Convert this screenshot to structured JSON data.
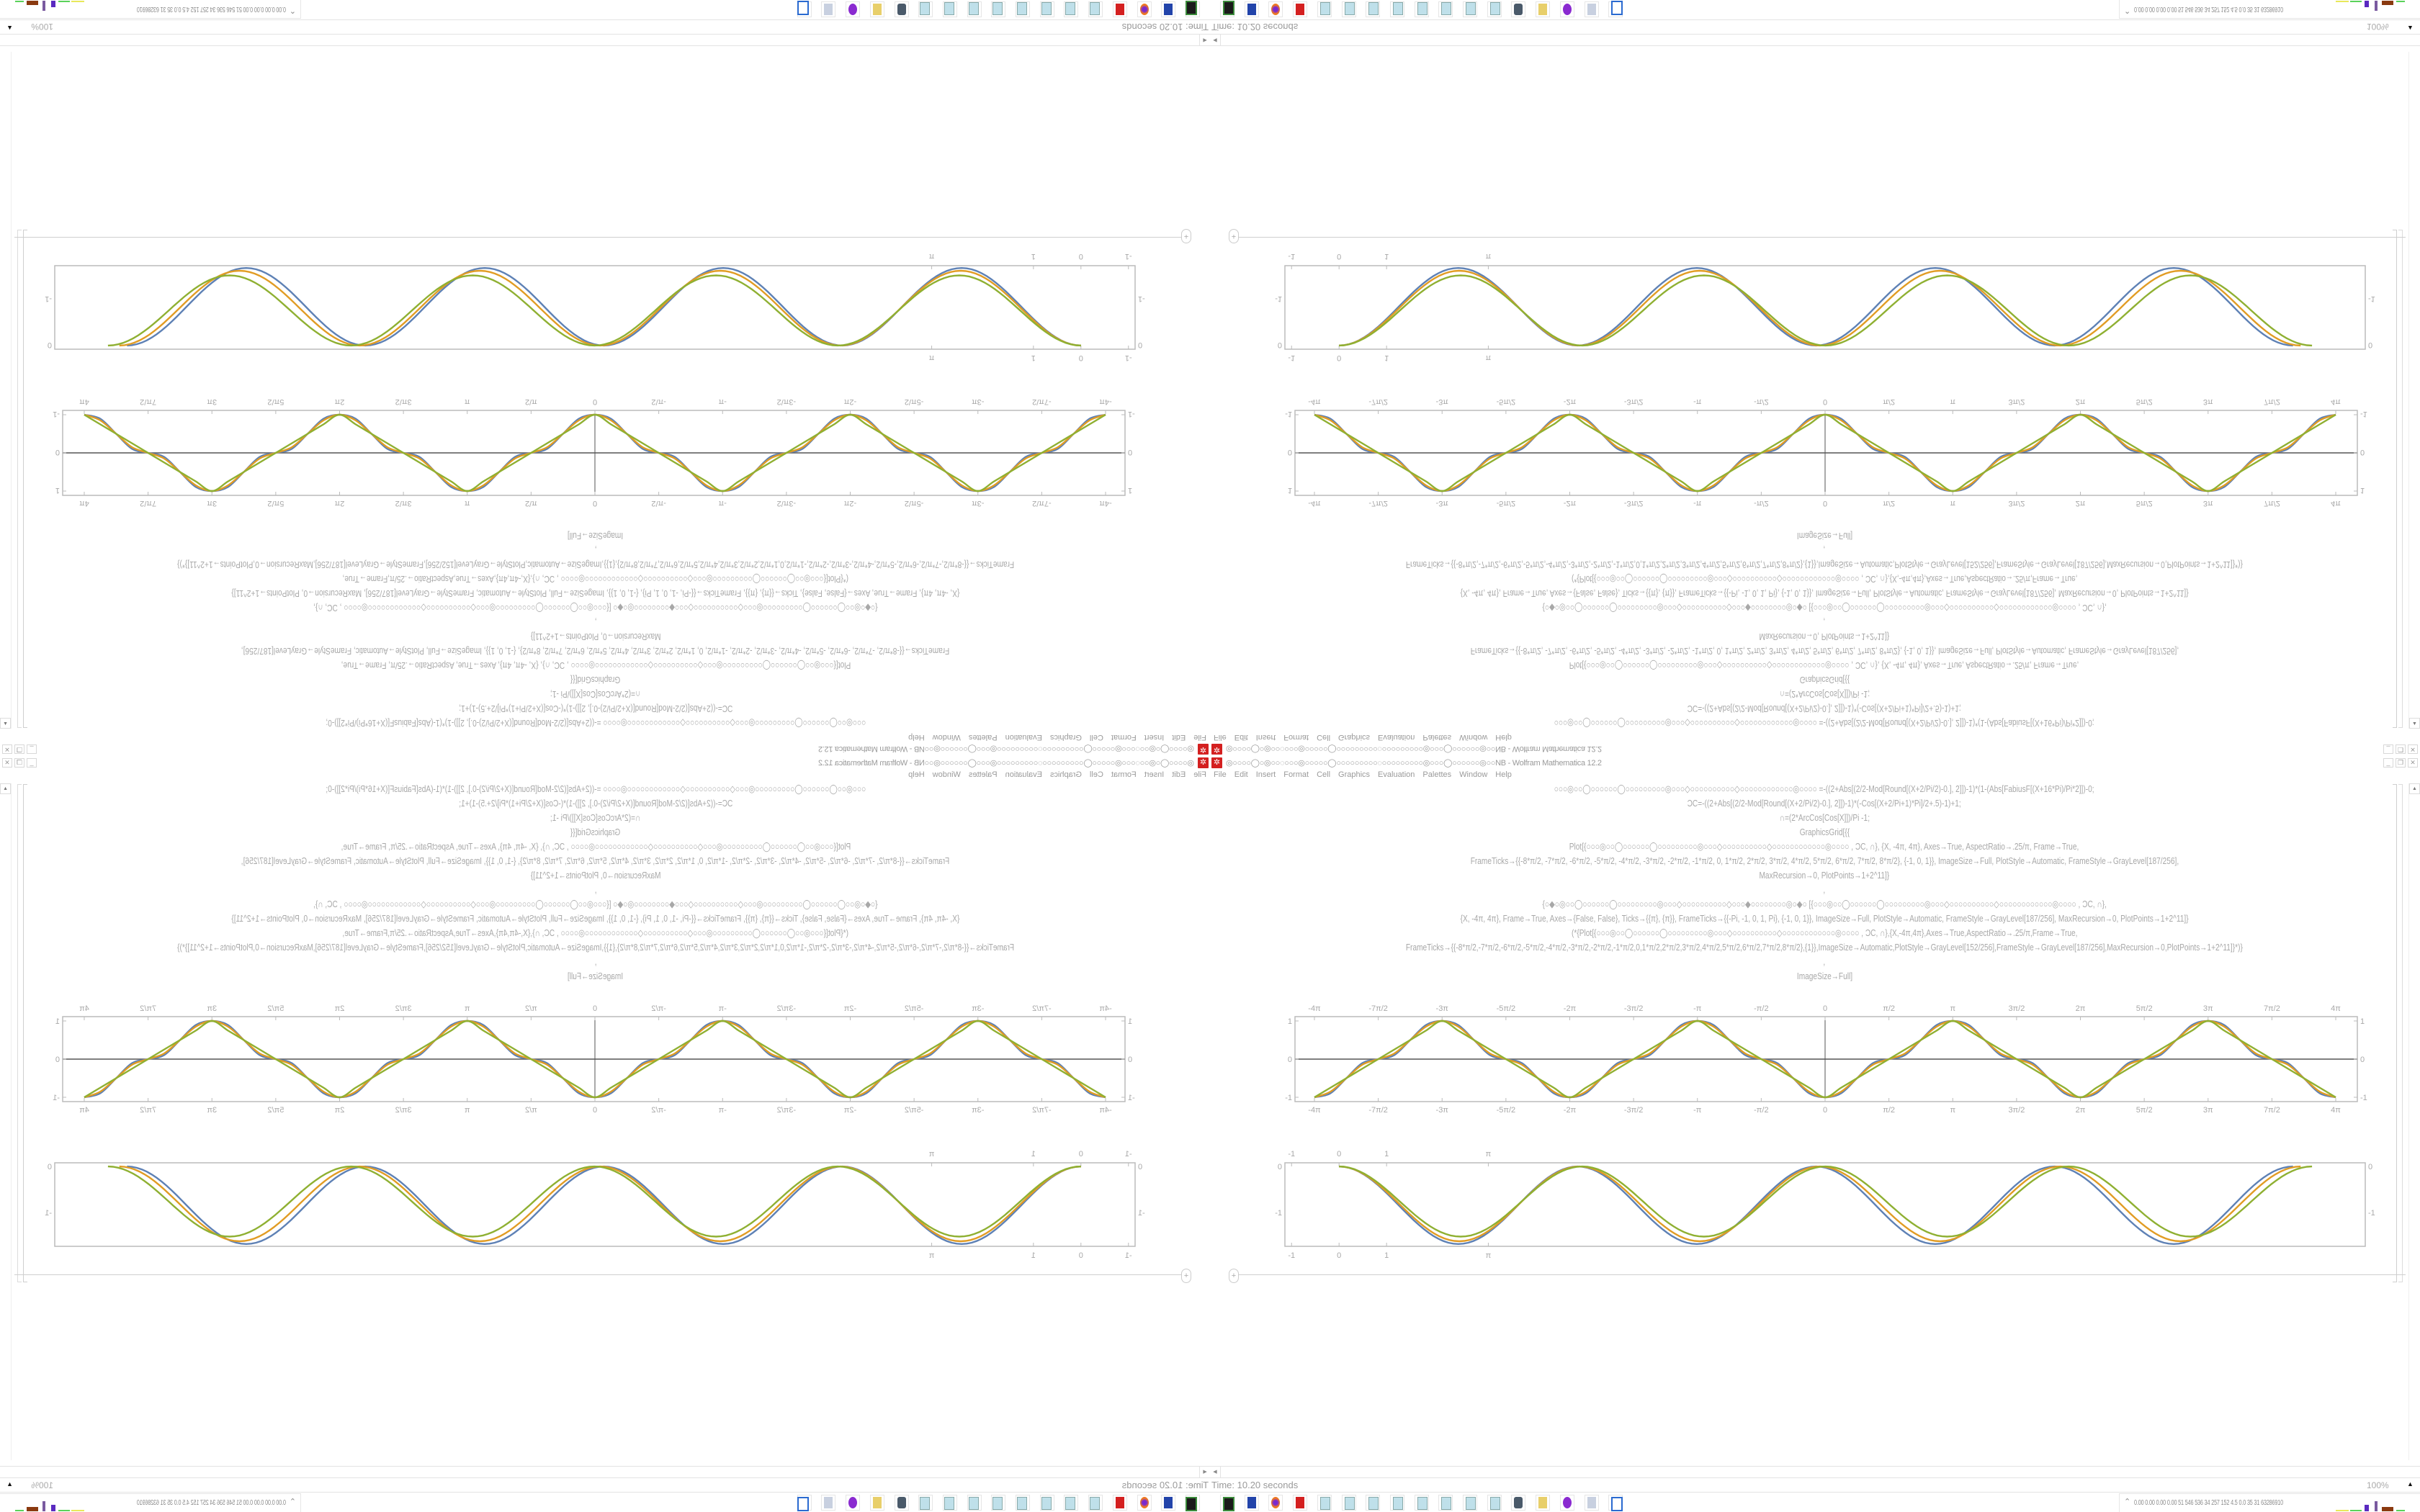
{
  "window": {
    "title": "◎○○○○◯○◎○○◌○○○◎○○○○○◯○○○○○○○○○◌○○○○○○○○○◎○○○◯○○○○○○◎○○NB - Wolfram Mathematica 12.2",
    "app_icon": "mathematica-icon",
    "buttons": {
      "minimize": "_",
      "restore": "❐",
      "close": "✕"
    }
  },
  "menu": [
    "File",
    "Edit",
    "Insert",
    "Format",
    "Cell",
    "Graphics",
    "Evaluation",
    "Palettes",
    "Window",
    "Help"
  ],
  "code_lines": [
    "○○○◎○○◯○○○○○○◯○○○○○○○○○◎○○○◇○○○○○○○○○○◇○○○○○○○○○○○○◎○○○○   =-((2+Abs[(2/2-Mod[Round[(X+2/Pi/2)-0.], 2]])-1)*(1-(Abs[FabiusF[(X+16*Pi)/Pi*2]])-0;",
    "ϽC=-((2+Abs[(2/2-Mod[Round[(X+2/Pi/2)-0.], 2]])-1)*(-Cos[(X+2/Pi+1)*Pi]/2+.5)-1)+1;",
    "∩=(2*ArcCos[Cos[X]])/Pi -1;",
    "GraphicsGrid[{{",
    "Plot[{○○○◎○○◯○○○○○○◯○○○○○○○○○◎○○○◇○○○○○○○○○○◇○○○○○○○○○○○○◎○○○○ , ϽC, ∩}, {X, -4π, 4π}, Axes→True, AspectRatio→.25/π, Frame→True,",
    "FrameTicks→{{-8*π/2, -7*π/2, -6*π/2, -5*π/2, -4*π/2, -3*π/2, -2*π/2, -1*π/2, 0, 1*π/2, 2*π/2, 3*π/2, 4*π/2, 5*π/2, 6*π/2, 7*π/2, 8*π/2}, {-1, 0, 1}}, ImageSize→Full, PlotStyle→Automatic, FrameStyle→GrayLevel[187/256],",
    "MaxRecursion→0, PlotPoints→1+2^11]}",
    ",",
    "{○◆○◎○○◯○○○○○○◯○○○○○○○○○◎○○○◇○○○○○○○○○○◇○○○◆○○○○○○○○◎○◆○ [{○○○◎○○◯○○○○○○◯○○○○○○○○○◎○○○◇○○○○○○○○○○◇○○○○○○○○○○○○◎○○○○ , ϽC, ∩},",
    "{X, -4π, 4π}, Frame→True, Axes→{False, False}, Ticks→{{π}, {π}}, FrameTicks→{{-Pi, -1, 0, 1, Pi}, {-1, 0, 1}}, ImageSize→Full, PlotStyle→Automatic, FrameStyle→GrayLevel[187/256], MaxRecursion→0, PlotPoints→1+2^11]}",
    "(*{Plot[{○○○◎○○◯○○○○○○◯○○○○○○○○○◎○○○◇○○○○○○○○○○◇○○○○○○○○○○○○◎○○○○ , ϽC, ∩},{X,-4π,4π},Axes→True,AspectRatio→.25/π,Frame→True,",
    "FrameTicks→{{-8*π/2,-7*π/2,-6*π/2,-5*π/2,-4*π/2,-3*π/2,-2*π/2,-1*π/2,0,1*π/2,2*π/2,3*π/2,4*π/2,5*π/2,6*π/2,7*π/2,8*π/2},{1}},ImageSize→Automatic,PlotStyle→GrayLevel[152/256],FrameStyle→GrayLevel[187/256],MaxRecursion→0,PlotPoints→1+2^11]}*)}",
    ",",
    "ImageSize→Full]"
  ],
  "add_cell_label": "+",
  "status": {
    "text": "Time: 10.20 seconds",
    "zoom": "100%"
  },
  "taskbar": {
    "icons": [
      "terminal-icon",
      "floppy-64-icon",
      "firefox-icon",
      "mathematica-icon",
      "notepad-icon",
      "notepad-icon",
      "notepad-icon",
      "notepad-icon",
      "notepad-icon",
      "notepad-icon",
      "notepad-icon",
      "notepad-icon",
      "webcam-icon",
      "folder-icon",
      "ghost-app-icon",
      "scroll-document-icon",
      "window-icon"
    ]
  },
  "tray": {
    "chevron": "⌃",
    "stats": "0.00 0.00 0.00 0.00   51   546  536   34   257  152   4.5   0.0   35    31  63286910"
  },
  "colors": {
    "series1": "#5E81B5",
    "series2": "#E19C24",
    "series3": "#8FB032",
    "frame": "#BBBBBB",
    "axis": "#555555"
  },
  "chart_data": [
    {
      "type": "line",
      "xlim": [
        -12.566,
        12.566
      ],
      "ylim": [
        -1,
        1
      ],
      "x_ticks_pi": [
        -4,
        -3.5,
        -3,
        -2.5,
        -2,
        -1.5,
        -1,
        -0.5,
        0,
        0.5,
        1,
        1.5,
        2,
        2.5,
        3,
        3.5,
        4
      ],
      "x_tick_labels": [
        "-4π",
        "-7π/2",
        "-3π",
        "-5π/2",
        "-2π",
        "-3π/2",
        "-π",
        "-π/2",
        "0",
        "π/2",
        "π",
        "3π/2",
        "2π",
        "5π/2",
        "3π",
        "7π/2",
        "4π"
      ],
      "y_ticks": [
        -1,
        0,
        1
      ],
      "y_tick_labels": [
        "-1",
        "0",
        "1"
      ],
      "axes": true,
      "frame": true,
      "x_sample_step_pi": 0.125,
      "series": [
        {
          "color": "#5E81B5",
          "values": [
            -1,
            -0.896,
            -0.5,
            -0.104,
            0,
            0.104,
            0.5,
            0.896,
            1,
            0.896,
            0.5,
            0.104,
            0,
            -0.104,
            -0.5,
            -0.896,
            -1,
            -0.896,
            -0.5,
            -0.104,
            0,
            0.104,
            0.5,
            0.896,
            1,
            0.896,
            0.5,
            0.104,
            0,
            -0.104,
            -0.5,
            -0.896,
            -1,
            -0.896,
            -0.5,
            -0.104,
            0,
            0.104,
            0.5,
            0.896,
            1,
            0.896,
            0.5,
            0.104,
            0,
            -0.104,
            -0.5,
            -0.896,
            -1,
            -0.896,
            -0.5,
            -0.104,
            0,
            0.104,
            0.5,
            0.896,
            1,
            0.896,
            0.5,
            0.104,
            0,
            -0.104,
            -0.5,
            -0.896,
            -1
          ]
        },
        {
          "color": "#E19C24",
          "values": [
            -1,
            -0.854,
            -0.5,
            -0.146,
            0,
            0.146,
            0.5,
            0.854,
            1,
            0.854,
            0.5,
            0.146,
            0,
            -0.146,
            -0.5,
            -0.854,
            -1,
            -0.854,
            -0.5,
            -0.146,
            0,
            0.146,
            0.5,
            0.854,
            1,
            0.854,
            0.5,
            0.146,
            0,
            -0.146,
            -0.5,
            -0.854,
            -1,
            -0.854,
            -0.5,
            -0.146,
            0,
            0.146,
            0.5,
            0.854,
            1,
            0.854,
            0.5,
            0.146,
            0,
            -0.146,
            -0.5,
            -0.854,
            -1,
            -0.854,
            -0.5,
            -0.146,
            0,
            0.146,
            0.5,
            0.854,
            1,
            0.854,
            0.5,
            0.146,
            0,
            -0.146,
            -0.5,
            -0.854,
            -1
          ]
        },
        {
          "color": "#8FB032",
          "values": [
            -1,
            -0.75,
            -0.5,
            -0.25,
            0,
            0.25,
            0.5,
            0.75,
            1,
            0.75,
            0.5,
            0.25,
            0,
            -0.25,
            -0.5,
            -0.75,
            -1,
            -0.75,
            -0.5,
            -0.25,
            0,
            0.25,
            0.5,
            0.75,
            1,
            0.75,
            0.5,
            0.25,
            0,
            -0.25,
            -0.5,
            -0.75,
            -1,
            -0.75,
            -0.5,
            -0.25,
            0,
            0.25,
            0.5,
            0.75,
            1,
            0.75,
            0.5,
            0.25,
            0,
            -0.25,
            -0.5,
            -0.75,
            -1,
            -0.75,
            -0.5,
            -0.25,
            0,
            0.25,
            0.5,
            0.75,
            1,
            0.75,
            0.5,
            0.25,
            0,
            -0.25,
            -0.5,
            -0.75,
            -1
          ]
        }
      ]
    },
    {
      "type": "line",
      "xlim": [
        -1.14,
        21.6
      ],
      "ylim": [
        -1.73,
        0.08
      ],
      "x_ticks": [
        -1,
        0,
        1,
        3.1416
      ],
      "x_tick_labels": [
        "-1",
        "0",
        "1",
        "π"
      ],
      "y_ticks": [
        0,
        -1
      ],
      "y_tick_labels": [
        "0",
        "-1"
      ],
      "axes": false,
      "frame": true,
      "series": [
        {
          "color": "#5E81B5",
          "key_points": [
            [
              0,
              0
            ],
            [
              2.51,
              -1.68
            ],
            [
              5.02,
              0
            ],
            [
              7.53,
              -1.68
            ],
            [
              10.04,
              0
            ],
            [
              12.55,
              -1.68
            ],
            [
              15.06,
              0
            ],
            [
              17.57,
              -1.68
            ],
            [
              20.08,
              0
            ]
          ]
        },
        {
          "color": "#E19C24",
          "key_points": [
            [
              0,
              0
            ],
            [
              2.53,
              -1.62
            ],
            [
              5.06,
              0
            ],
            [
              7.59,
              -1.62
            ],
            [
              10.12,
              0
            ],
            [
              12.65,
              -1.62
            ],
            [
              15.18,
              0
            ],
            [
              17.71,
              -1.62
            ],
            [
              20.24,
              0
            ]
          ]
        },
        {
          "color": "#8FB032",
          "key_points": [
            [
              0,
              0
            ],
            [
              2.56,
              -1.52
            ],
            [
              5.12,
              0
            ],
            [
              7.68,
              -1.52
            ],
            [
              10.24,
              0
            ],
            [
              12.8,
              -1.52
            ],
            [
              15.36,
              0
            ],
            [
              17.92,
              -1.52
            ],
            [
              20.48,
              0
            ]
          ]
        }
      ]
    }
  ]
}
